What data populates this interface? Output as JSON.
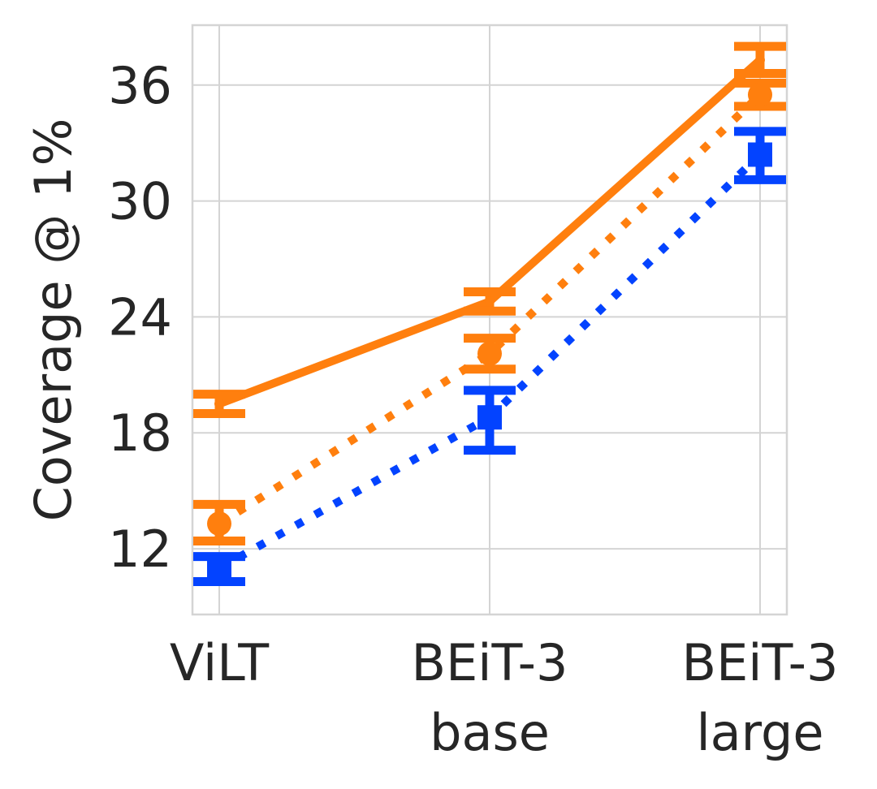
{
  "chart_data": {
    "type": "line",
    "title": "",
    "xlabel": "",
    "ylabel": "Coverage @ 1%",
    "categories": [
      [
        "ViLT"
      ],
      [
        "BEiT-3",
        "base"
      ],
      [
        "BEiT-3",
        "large"
      ]
    ],
    "yticks": [
      12,
      18,
      24,
      30,
      36
    ],
    "ylim": [
      8.6,
      39.1
    ],
    "grid": true,
    "legend": "none",
    "series": [
      {
        "color": "#ff7f0e",
        "line_style": "solid",
        "marker": "none",
        "values": [
          19.5,
          24.8,
          37.3
        ],
        "err_low": [
          19.0,
          24.3,
          36.6
        ],
        "err_high": [
          20.0,
          25.3,
          38.0
        ]
      },
      {
        "color": "#ff7f0e",
        "line_style": "dotted",
        "marker": "circle",
        "values": [
          13.3,
          22.1,
          35.5
        ],
        "err_low": [
          12.4,
          21.3,
          34.9
        ],
        "err_high": [
          14.3,
          22.9,
          36.1
        ]
      },
      {
        "color": "#0343ff",
        "line_style": "dotted",
        "marker": "square",
        "values": [
          11.0,
          18.8,
          32.4
        ],
        "err_low": [
          10.3,
          17.1,
          31.1
        ],
        "err_high": [
          11.6,
          20.2,
          33.6
        ]
      }
    ]
  }
}
